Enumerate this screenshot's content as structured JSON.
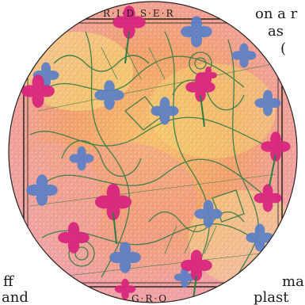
{
  "page_text": {
    "top_right_line1": "on a r",
    "top_right_line2": "as",
    "top_right_line3": "(",
    "bottom_left_line1": "ff",
    "bottom_left_line2": "and",
    "bottom_right_line1": "ma",
    "bottom_right_line2": "plast"
  },
  "artwork": {
    "top_caption": "R·I·D S·E·R",
    "bottom_caption": "G·R·O",
    "colors": {
      "background_orange": "#f4a06a",
      "background_pink": "#f3a0a8",
      "background_yellow": "#f7e07a",
      "ink_green": "#2f7b45",
      "blossom_magenta": "#d9267e",
      "blossom_blue": "#5b7fc7",
      "frame_black": "#1b1b1b"
    },
    "icons": [
      "magenta-four-petal-flower",
      "blue-four-petal-flower",
      "green-ink-engraving"
    ]
  }
}
